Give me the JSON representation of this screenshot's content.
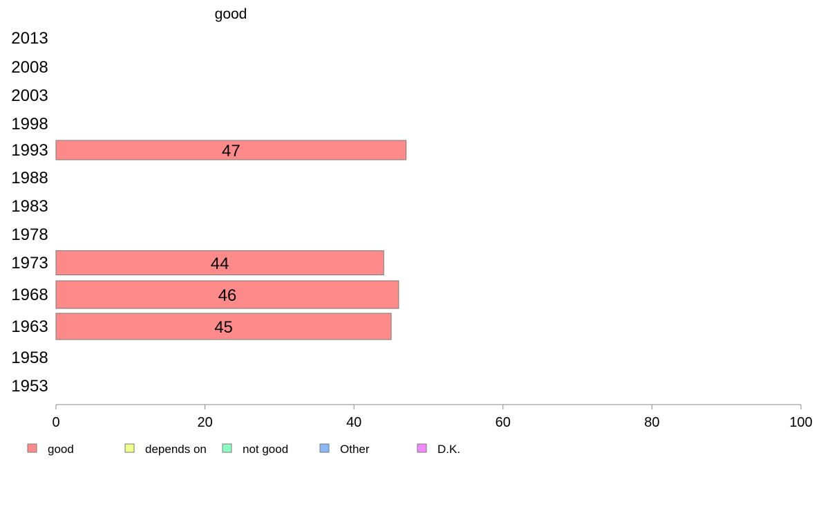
{
  "chart_data": {
    "type": "bar",
    "orientation": "horizontal",
    "series_title": "good",
    "categories": [
      "2013",
      "2008",
      "2003",
      "1998",
      "1993",
      "1988",
      "1983",
      "1978",
      "1973",
      "1968",
      "1963",
      "1958",
      "1953"
    ],
    "series": [
      {
        "name": "good",
        "values": [
          null,
          null,
          null,
          null,
          47,
          null,
          null,
          null,
          44,
          46,
          45,
          null,
          null
        ]
      }
    ],
    "xlim": [
      0,
      100
    ],
    "xticks": [
      "0",
      "20",
      "40",
      "60",
      "80",
      "100"
    ],
    "grid": false,
    "legend_position": "bottom"
  },
  "legend": [
    {
      "label": "good",
      "color": "#ff8a8a"
    },
    {
      "label": "depends on",
      "color": "#eeff8a"
    },
    {
      "label": "not good",
      "color": "#8affc0"
    },
    {
      "label": "Other",
      "color": "#8ab8ff"
    },
    {
      "label": "D.K.",
      "color": "#f08aff"
    }
  ],
  "colors": {
    "bar_fill": "#ff8a8a",
    "bar_stroke": "#7a7a7a",
    "axis": "#888888"
  }
}
